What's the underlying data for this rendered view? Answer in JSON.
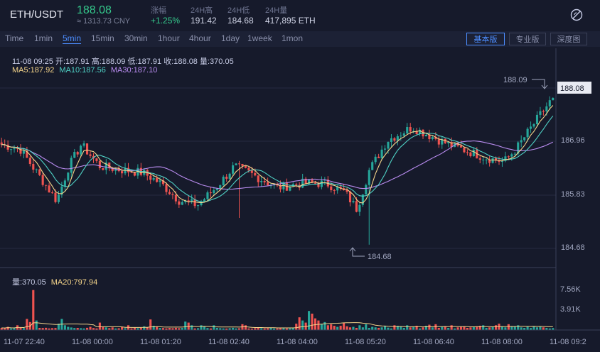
{
  "header": {
    "pair": "ETH/USDT",
    "price": "188.08",
    "cny": "≈ 1313.73 CNY",
    "stats": [
      {
        "label": "涨幅",
        "value": "+1.25%",
        "up": true
      },
      {
        "label": "24H高",
        "value": "191.42"
      },
      {
        "label": "24H低",
        "value": "184.68"
      },
      {
        "label": "24H量",
        "value": "417,895 ETH"
      }
    ]
  },
  "toolbar": {
    "intervals": [
      "Time",
      "1min",
      "5min",
      "15min",
      "30min",
      "1hour",
      "4hour",
      "1day",
      "1week",
      "1mon"
    ],
    "active_interval": "5min",
    "views": [
      "基本版",
      "专业版",
      "深度图"
    ],
    "active_view": "基本版"
  },
  "info": {
    "ohlc": "11-08 09:25  开:187.91  高:188.09  低:187.91  收:188.08  量:370.05",
    "ma5": "MA5:187.92",
    "ma10": "MA10:187.56",
    "ma30": "MA30:187.10",
    "vol": "量:370.05",
    "vol_ma20": "MA20:797.94"
  },
  "colors": {
    "up": "#26a69a",
    "down": "#ef5350",
    "ma5": "#f5d58a",
    "ma10": "#4fd1c5",
    "ma30": "#b98cf0",
    "accent": "#4c8dff"
  },
  "chart_data": {
    "type": "candlestick",
    "price_axis": [
      "188.08",
      "186.96",
      "185.83",
      "184.68"
    ],
    "price_range": [
      184.2,
      188.9
    ],
    "current_price": "188.08",
    "high_marker": {
      "label": "188.09",
      "value": 188.09
    },
    "low_marker": {
      "label": "184.68",
      "value": 184.68
    },
    "volume_axis": [
      "7.56K",
      "3.91K"
    ],
    "volume_max": 9000,
    "x_labels": [
      "11-07 22:40",
      "11-08 00:00",
      "11-08 01:20",
      "11-08 02:40",
      "11-08 04:00",
      "11-08 05:20",
      "11-08 06:40",
      "11-08 08:00",
      "11-08 09:2"
    ],
    "close_path": [
      [
        0,
        187.0
      ],
      [
        6,
        186.9
      ],
      [
        12,
        186.3
      ],
      [
        18,
        185.7
      ],
      [
        22,
        186.5
      ],
      [
        26,
        187.0
      ],
      [
        32,
        186.5
      ],
      [
        40,
        186.4
      ],
      [
        46,
        186.35
      ],
      [
        52,
        186.1
      ],
      [
        58,
        185.7
      ],
      [
        64,
        185.6
      ],
      [
        70,
        186.0
      ],
      [
        76,
        186.5
      ],
      [
        82,
        186.3
      ],
      [
        90,
        186.0
      ],
      [
        98,
        186.1
      ],
      [
        106,
        186.1
      ],
      [
        112,
        185.9
      ],
      [
        116,
        185.5
      ],
      [
        120,
        186.4
      ],
      [
        126,
        187.1
      ],
      [
        134,
        187.4
      ],
      [
        140,
        187.2
      ],
      [
        146,
        187.0
      ],
      [
        152,
        186.85
      ],
      [
        158,
        186.7
      ],
      [
        164,
        186.6
      ],
      [
        168,
        186.9
      ],
      [
        172,
        187.3
      ],
      [
        176,
        187.7
      ],
      [
        180,
        188.08
      ]
    ],
    "volumes": [
      400,
      380,
      600,
      300,
      350,
      900,
      420,
      360,
      2100,
      1500,
      7560,
      1800,
      400,
      380,
      420,
      300,
      350,
      380,
      1200,
      2100,
      900,
      600,
      480,
      380,
      400,
      350,
      300,
      420,
      600,
      380,
      300,
      1400,
      600,
      500,
      350,
      500,
      300,
      330,
      600,
      350,
      900,
      300,
      420,
      350,
      400,
      700,
      500,
      2000,
      800,
      700,
      400,
      380,
      300,
      400,
      350,
      420,
      350,
      400,
      1600,
      1400,
      900,
      300,
      350,
      900,
      600,
      380,
      300,
      900,
      400,
      350,
      300,
      280,
      350,
      420,
      300,
      330,
      1100,
      900,
      300,
      250,
      350,
      400,
      350,
      300,
      350,
      420,
      280,
      300,
      350,
      400,
      300,
      320,
      350,
      1200,
      2400,
      1800,
      1400,
      3600,
      3100,
      2200,
      1800,
      1100,
      1500,
      900,
      1100,
      800,
      600,
      800,
      1400,
      700,
      500,
      600,
      400,
      900,
      500,
      1100,
      400,
      600,
      500,
      400,
      500,
      800,
      450,
      300,
      900,
      800,
      700,
      400,
      900,
      500,
      600,
      800,
      300,
      500,
      800,
      1000,
      500,
      1100,
      400,
      600,
      700,
      400,
      900,
      300,
      500,
      600,
      700,
      400,
      500,
      600,
      700,
      800,
      900,
      400,
      500,
      600,
      900,
      1200,
      700,
      500,
      1100,
      600,
      700,
      900,
      500,
      400,
      600,
      380,
      600,
      500,
      600,
      500,
      400,
      300,
      370
    ]
  }
}
